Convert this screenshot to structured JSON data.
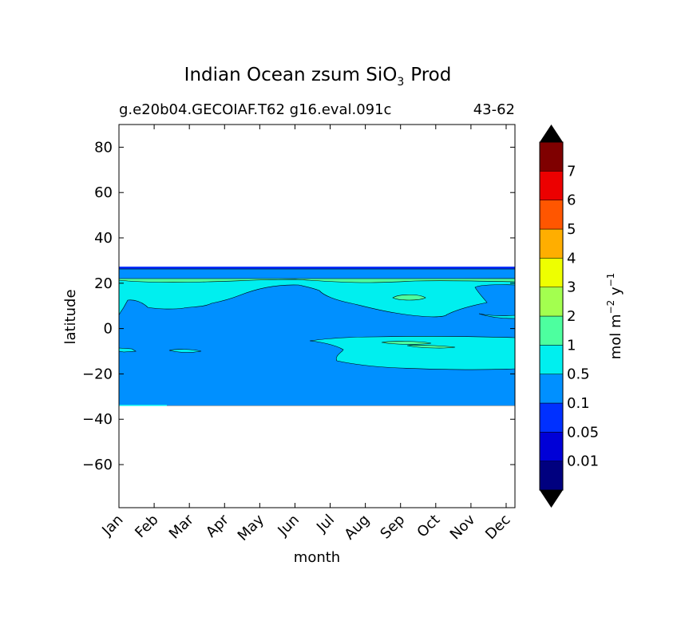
{
  "chart_data": {
    "type": "contour",
    "title_main": "Indian Ocean zsum SiO",
    "title_sub": "3",
    "title_tail": "Prod",
    "subtitle_left": "g.e20b04.GECOIAF.T62 g16.eval.091c",
    "subtitle_right": "43-62",
    "xlabel": "month",
    "ylabel": "latitude",
    "x_ticks": [
      "Jan",
      "Feb",
      "Mar",
      "Apr",
      "May",
      "Jun",
      "Jul",
      "Aug",
      "Sep",
      "Oct",
      "Nov",
      "Dec"
    ],
    "y_ticks": [
      80,
      60,
      40,
      20,
      0,
      -20,
      -40,
      -60
    ],
    "y_tick_labels": [
      "80",
      "60",
      "40",
      "20",
      "0",
      "−20",
      "−40",
      "−60"
    ],
    "ylim": [
      -79,
      90
    ],
    "xlim": [
      0,
      11.25
    ],
    "colorbar": {
      "label_main": "mol m",
      "label_exp1": "−2",
      "label_mid": " y",
      "label_exp2": "−1",
      "tick_labels": [
        "0.01",
        "0.05",
        "0.1",
        "0.5",
        "1",
        "2",
        "3",
        "4",
        "5",
        "6",
        "7"
      ],
      "levels": [
        0,
        0.01,
        0.05,
        0.1,
        0.5,
        1,
        2,
        3,
        4,
        5,
        6,
        7,
        8
      ],
      "colors": [
        "#00007f",
        "#0000d7",
        "#0030ff",
        "#0090ff",
        "#00efef",
        "#4dff9f",
        "#a3ff4f",
        "#eeff00",
        "#ffae00",
        "#ff5600",
        "#ec0000",
        "#7f0000"
      ],
      "extend_color": "#000000"
    },
    "regions": [
      {
        "level": "0.05",
        "color": "#0030ff",
        "lat_range": [
          25.5,
          27
        ]
      },
      {
        "level": "0.1",
        "color": "#0090ff",
        "lat_range": [
          -34,
          25.5
        ]
      },
      {
        "level": "0.5",
        "color": "#00efef",
        "lat_range": [
          8,
          23
        ]
      },
      {
        "level": "0.5",
        "color": "#00efef",
        "lat_range": [
          -19,
          -5
        ]
      },
      {
        "level": "1",
        "color": "#4dff9f",
        "lat_range": [
          20,
          23
        ]
      }
    ]
  }
}
